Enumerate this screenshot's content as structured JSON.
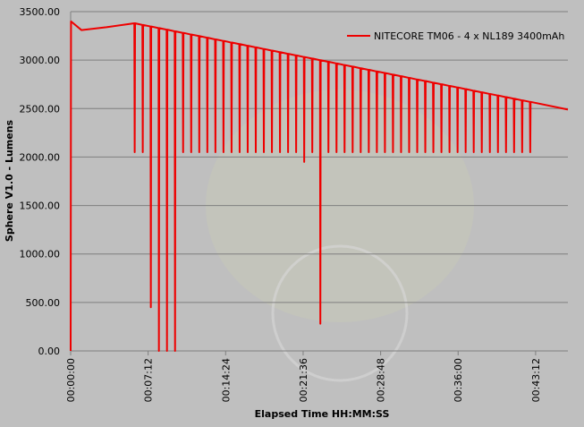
{
  "chart_data": {
    "type": "line",
    "x": [
      0,
      2,
      60,
      200,
      355,
      357,
      359,
      400,
      402,
      404,
      445,
      447,
      449,
      490,
      492,
      494,
      535,
      537,
      539,
      580,
      582,
      584,
      625,
      627,
      629,
      670,
      672,
      674,
      715,
      717,
      719,
      760,
      762,
      764,
      805,
      807,
      809,
      850,
      852,
      854,
      895,
      897,
      899,
      940,
      942,
      944,
      985,
      987,
      989,
      1030,
      1032,
      1034,
      1075,
      1077,
      1079,
      1120,
      1122,
      1124,
      1165,
      1167,
      1169,
      1210,
      1212,
      1214,
      1255,
      1257,
      1259,
      1300,
      1302,
      1304,
      1345,
      1347,
      1349,
      1390,
      1392,
      1394,
      1435,
      1437,
      1439,
      1480,
      1482,
      1484,
      1525,
      1527,
      1529,
      1570,
      1572,
      1574,
      1615,
      1617,
      1619,
      1660,
      1662,
      1664,
      1705,
      1707,
      1709,
      1750,
      1752,
      1754,
      1795,
      1797,
      1799,
      1840,
      1842,
      1844,
      1885,
      1887,
      1889,
      1930,
      1932,
      1934,
      1975,
      1977,
      1979,
      2020,
      2022,
      2024,
      2065,
      2067,
      2069,
      2110,
      2112,
      2114,
      2155,
      2157,
      2159,
      2200,
      2202,
      2204,
      2245,
      2247,
      2249,
      2290,
      2292,
      2294,
      2335,
      2337,
      2339,
      2380,
      2382,
      2384,
      2425,
      2427,
      2429,
      2470,
      2472,
      2474,
      2515,
      2517,
      2519,
      2560,
      2562,
      2564,
      2772
    ],
    "series": [
      {
        "name": "NITECORE TM06 - 4 x NL189 3400mAh",
        "color": "#ee0000",
        "values": [
          0,
          3400,
          3310,
          3340,
          3380,
          2050,
          3380,
          3363,
          2050,
          3363,
          3347,
          450,
          3347,
          3330,
          0,
          3330,
          3314,
          0,
          3314,
          3297,
          0,
          3297,
          3281,
          2050,
          3281,
          3264,
          2050,
          3264,
          3248,
          2050,
          3248,
          3231,
          2050,
          3231,
          3214,
          2050,
          3214,
          3198,
          2050,
          3198,
          3181,
          2050,
          3181,
          3165,
          2050,
          3165,
          3148,
          2050,
          3148,
          3132,
          2050,
          3132,
          3115,
          2050,
          3115,
          3098,
          2050,
          3098,
          3082,
          2050,
          3082,
          3065,
          2050,
          3065,
          3049,
          2050,
          3049,
          3032,
          1950,
          3032,
          3016,
          2050,
          3016,
          2999,
          280,
          2999,
          2983,
          2050,
          2983,
          2966,
          2050,
          2966,
          2949,
          2050,
          2949,
          2933,
          2050,
          2933,
          2916,
          2050,
          2916,
          2900,
          2050,
          2900,
          2883,
          2050,
          2883,
          2867,
          2050,
          2867,
          2850,
          2050,
          2850,
          2834,
          2050,
          2834,
          2817,
          2050,
          2817,
          2800,
          2050,
          2800,
          2784,
          2050,
          2784,
          2767,
          2050,
          2767,
          2751,
          2050,
          2751,
          2734,
          2050,
          2734,
          2718,
          2050,
          2718,
          2701,
          2050,
          2701,
          2684,
          2050,
          2684,
          2668,
          2050,
          2668,
          2651,
          2050,
          2651,
          2635,
          2050,
          2635,
          2618,
          2050,
          2618,
          2602,
          2050,
          2602,
          2585,
          2050,
          2585,
          2569,
          2050,
          2569,
          2490
        ]
      }
    ],
    "xlim": [
      0,
      2772
    ],
    "xticks": [
      {
        "value": 0,
        "label": "00:00:00"
      },
      {
        "value": 432,
        "label": "00:07:12"
      },
      {
        "value": 864,
        "label": "00:14:24"
      },
      {
        "value": 1296,
        "label": "00:21:36"
      },
      {
        "value": 1728,
        "label": "00:28:48"
      },
      {
        "value": 2160,
        "label": "00:36:00"
      },
      {
        "value": 2592,
        "label": "00:43:12"
      }
    ],
    "ylim": [
      0,
      3500
    ],
    "yticks": [
      {
        "value": 0,
        "label": "0.00"
      },
      {
        "value": 500,
        "label": "500.00"
      },
      {
        "value": 1000,
        "label": "1000.00"
      },
      {
        "value": 1500,
        "label": "1500.00"
      },
      {
        "value": 2000,
        "label": "2000.00"
      },
      {
        "value": 2500,
        "label": "2500.00"
      },
      {
        "value": 3000,
        "label": "3000.00"
      },
      {
        "value": 3500,
        "label": "3500.00"
      }
    ],
    "x_label": "Elapsed Time HH:MM:SS",
    "y_label": "Sphere V1.0 - Lumens",
    "grid": true,
    "legend": "upper right"
  }
}
